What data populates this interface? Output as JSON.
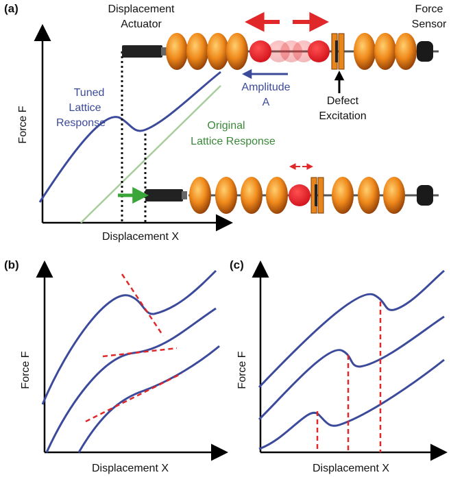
{
  "panels": [
    {
      "label": "(a)",
      "y_axis": "Force F",
      "x_axis": "Displacement X",
      "actuator": [
        "Displacement",
        "Actuator"
      ],
      "sensor": [
        "Force",
        "Sensor"
      ],
      "tuned": [
        "Tuned",
        "Lattice",
        "Response"
      ],
      "original": [
        "Original",
        "Lattice Response"
      ],
      "amplitude": [
        "Amplitude",
        "A"
      ],
      "defect": [
        "Defect",
        "Excitation"
      ]
    },
    {
      "label": "(b)",
      "y_axis": "Force F",
      "x_axis": "Displacement X"
    },
    {
      "label": "(c)",
      "y_axis": "Force F",
      "x_axis": "Displacement X"
    }
  ]
}
